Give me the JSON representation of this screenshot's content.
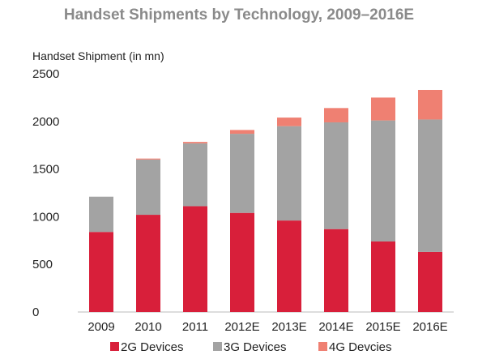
{
  "chart_data": {
    "type": "bar",
    "stacked": true,
    "title": "Handset Shipments by Technology, 2009–2016E",
    "ylabel": "Handset Shipment (in mn)",
    "xlabel": "",
    "ylim": [
      0,
      2500
    ],
    "yticks": [
      "0",
      "500",
      "1000",
      "1500",
      "2000",
      "2500"
    ],
    "grid": false,
    "legend_position": "bottom",
    "categories": [
      "2009",
      "2010",
      "2011",
      "2012E",
      "2013E",
      "2014E",
      "2015E",
      "2016E"
    ],
    "series": [
      {
        "name": "2G Devices",
        "color": "#d81f3a",
        "values": [
          840,
          1020,
          1110,
          1040,
          960,
          870,
          740,
          630
        ]
      },
      {
        "name": "3G Devices",
        "color": "#a3a3a3",
        "values": [
          370,
          580,
          660,
          830,
          990,
          1120,
          1270,
          1390
        ]
      },
      {
        "name": "4G Devcies",
        "color": "#ef8072",
        "values": [
          0,
          10,
          15,
          40,
          90,
          150,
          240,
          310
        ]
      }
    ]
  }
}
